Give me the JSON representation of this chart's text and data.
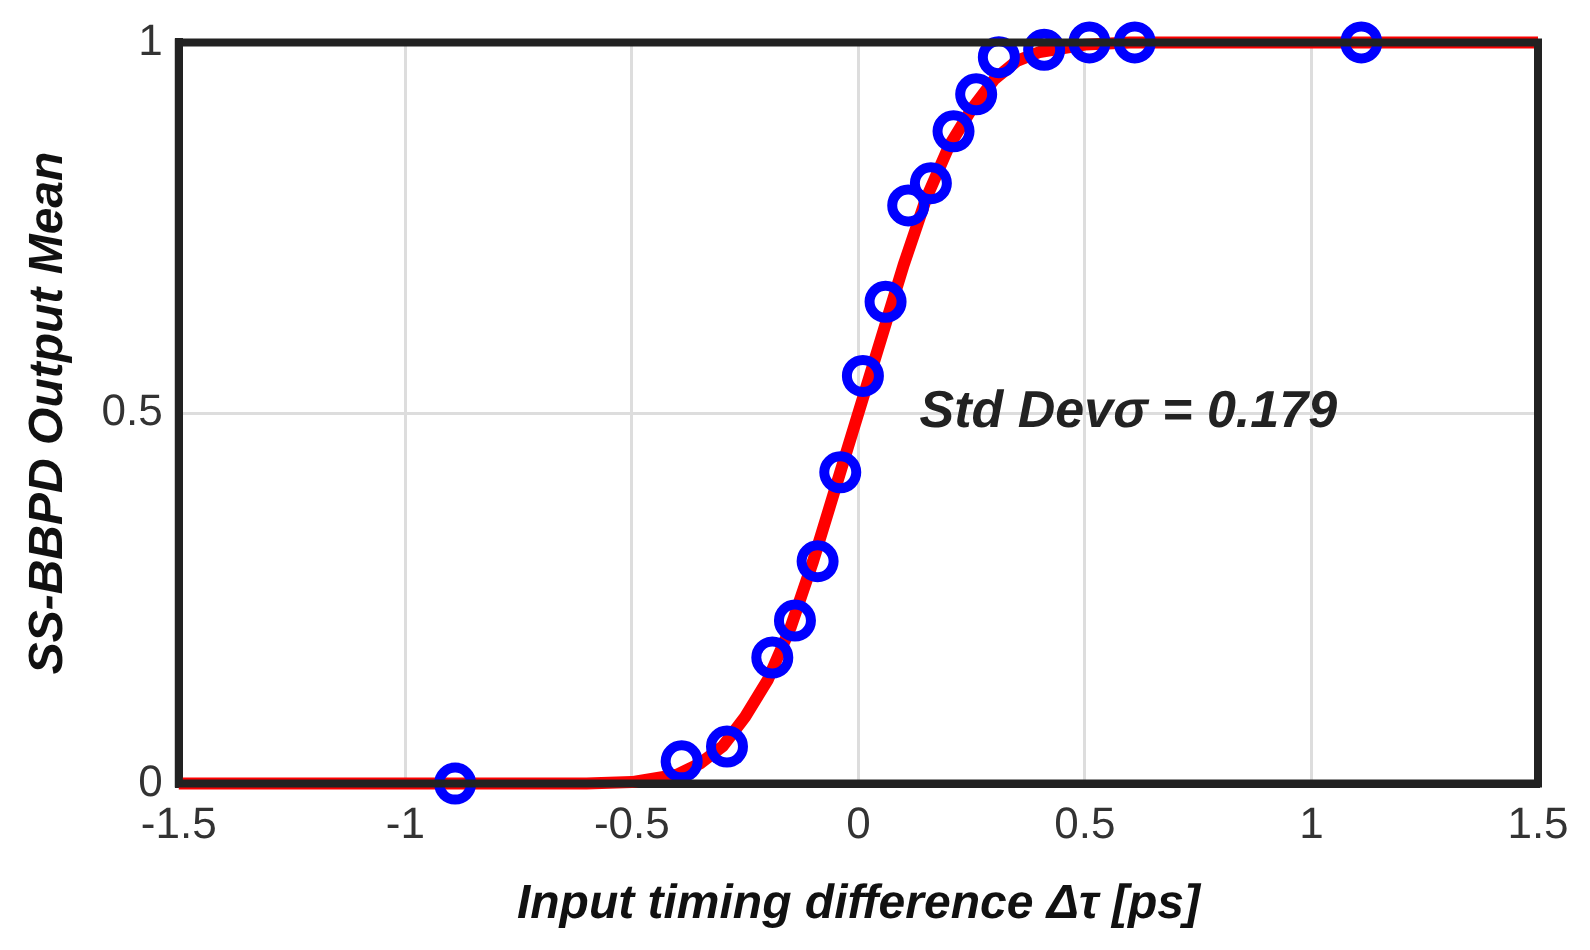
{
  "chart_data": {
    "type": "scatter",
    "xlabel": "Input timing difference Δτ [ps]",
    "ylabel": "SS-BBPD Output Mean",
    "xlim": [
      -1.5,
      1.5
    ],
    "xticks": [
      -1.5,
      -1,
      -0.5,
      0,
      0.5,
      1,
      1.5
    ],
    "ylim": [
      0,
      1
    ],
    "yticks": [
      0,
      0.5,
      1
    ],
    "grid": true,
    "legend": false,
    "annotations": [
      "Std Devσ = 0.179"
    ],
    "series": [
      {
        "type": "line",
        "color": "#ff0000",
        "marker": "none",
        "x": [
          -1.5,
          -0.6,
          -0.5,
          -0.4,
          -0.35,
          -0.3,
          -0.25,
          -0.2,
          -0.15,
          -0.1,
          -0.05,
          0,
          0.05,
          0.1,
          0.15,
          0.2,
          0.25,
          0.3,
          0.35,
          0.4,
          0.5,
          0.6,
          1.5
        ],
        "values": [
          0,
          0,
          0.002,
          0.012,
          0.027,
          0.05,
          0.09,
          0.14,
          0.21,
          0.3,
          0.4,
          0.5,
          0.6,
          0.7,
          0.79,
          0.86,
          0.91,
          0.95,
          0.975,
          0.987,
          0.997,
          1,
          1
        ]
      },
      {
        "color": "#0000ff",
        "marker": "circle",
        "x": [
          -0.89,
          -0.39,
          -0.29,
          -0.19,
          -0.14,
          -0.09,
          -0.04,
          0.01,
          0.06,
          0.11,
          0.16,
          0.21,
          0.26,
          0.31,
          0.41,
          0.51,
          0.61,
          1.11
        ],
        "values": [
          0,
          0.03,
          0.05,
          0.17,
          0.22,
          0.3,
          0.42,
          0.55,
          0.65,
          0.78,
          0.81,
          0.88,
          0.93,
          0.98,
          0.99,
          1,
          1,
          1
        ]
      }
    ]
  }
}
